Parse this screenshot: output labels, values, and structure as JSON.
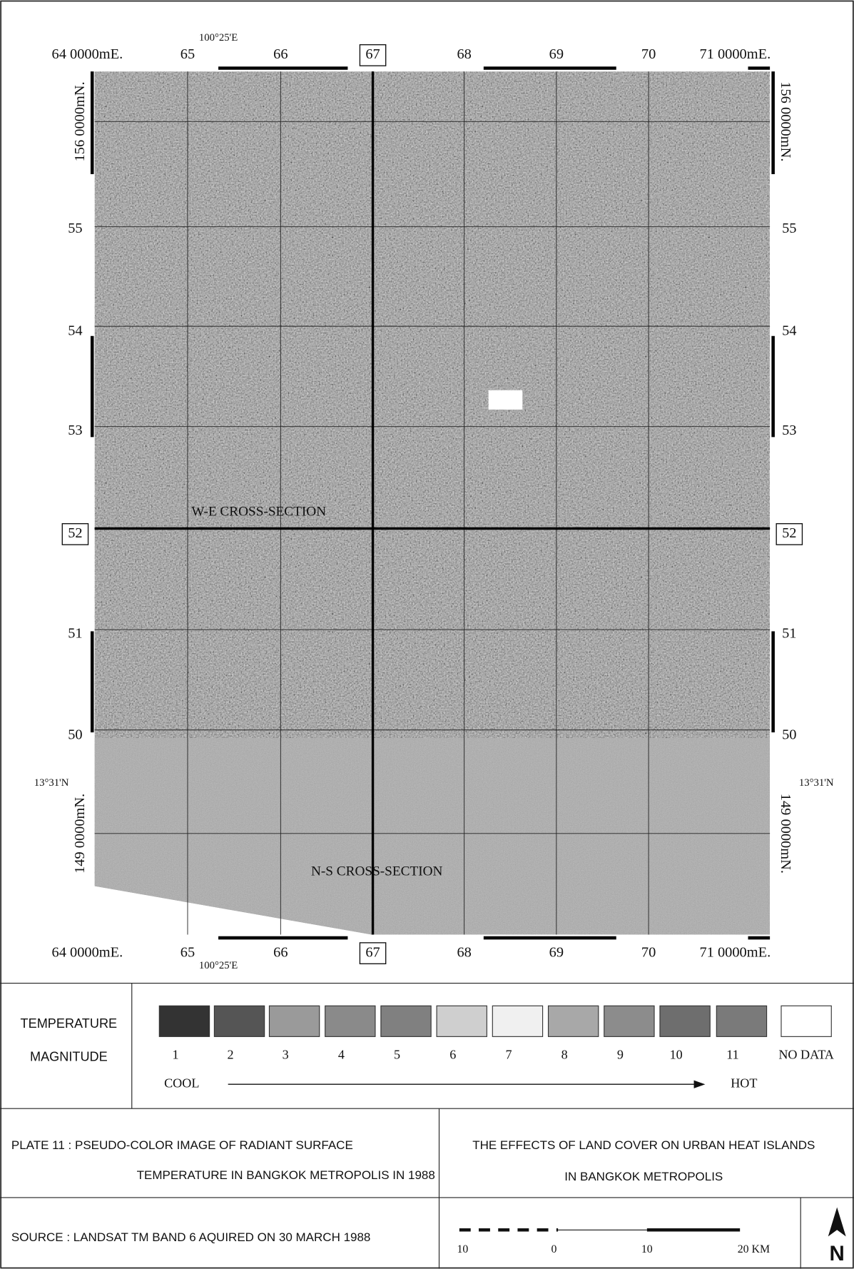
{
  "map": {
    "top_labels": [
      "64 0000mE.",
      "65",
      "66",
      "67",
      "68",
      "69",
      "70",
      "71 0000mE."
    ],
    "top_secondary": "100°25'E",
    "bottom_labels": [
      "64 0000mE.",
      "65",
      "66",
      "67",
      "68",
      "69",
      "70",
      "71 0000mE."
    ],
    "bottom_secondary": "100°25'E",
    "left_labels": [
      "156 0000mN.",
      "55",
      "54",
      "53",
      "52",
      "51",
      "50",
      "149 0000mN."
    ],
    "right_labels": [
      "156 0000mN.",
      "55",
      "54",
      "53",
      "52",
      "51",
      "50",
      "149 0000mN."
    ],
    "left_latitude": "13°31'N",
    "right_latitude": "13°31'N",
    "annotations": [
      "W-E CROSS-SECTION",
      "N-S CROSS-SECTION"
    ]
  },
  "legend": {
    "title_lines": [
      "TEMPERATURE",
      "MAGNITUDE"
    ],
    "classes": [
      "1",
      "2",
      "3",
      "4",
      "5",
      "6",
      "7",
      "8",
      "9",
      "10",
      "11",
      "NO DATA"
    ],
    "colors": [
      "#333333",
      "#555555",
      "#9a9a9a",
      "#8a8a8a",
      "#808080",
      "#cfcfcf",
      "#f0f0f0",
      "#a8a8a8",
      "#8c8c8c",
      "#6e6e6e",
      "#7a7a7a",
      "#ffffff"
    ],
    "low": "COOL",
    "high": "HOT"
  },
  "title": {
    "plate_lines": [
      "PLATE 11 :  PSEUDO-COLOR IMAGE OF RADIANT SURFACE",
      "TEMPERATURE IN BANGKOK METROPOLIS IN 1988"
    ],
    "project_lines": [
      "THE EFFECTS OF LAND COVER ON URBAN HEAT ISLANDS",
      "IN BANGKOK METROPOLIS"
    ]
  },
  "source": "SOURCE : LANDSAT TM BAND 6 AQUIRED ON 30 MARCH 1988",
  "scale_bar": {
    "labels": [
      "10",
      "0",
      "10",
      "20 KM"
    ]
  },
  "north": "N"
}
